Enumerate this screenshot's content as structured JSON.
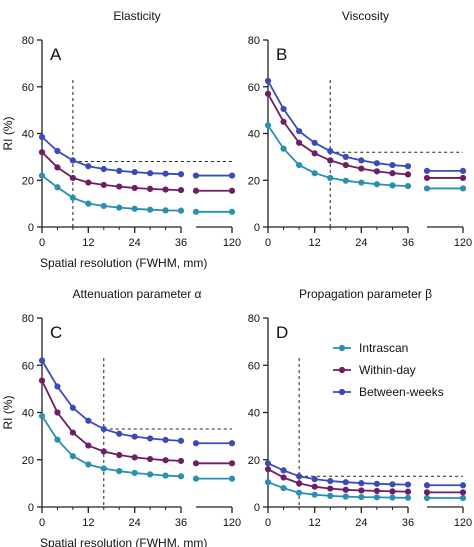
{
  "colors": {
    "Intrascan": "#2a8fb0",
    "Within-day": "#6e1f63",
    "Between-weeks": "#3a4bb8",
    "axis": "#222222",
    "threshold": "#222222"
  },
  "legend_labels": [
    "Intrascan",
    "Within-day",
    "Between-weeks"
  ],
  "chart_data": [
    {
      "type": "line",
      "panel_letter": "A",
      "title": "Elasticity",
      "xlabel": "Spatial resolution (FWHM, mm)",
      "ylabel": "RI (%)",
      "ylim": [
        0,
        80
      ],
      "yticks": [
        0,
        20,
        40,
        60,
        80
      ],
      "xticks_main": [
        0,
        12,
        24,
        36
      ],
      "xticks_break": [
        120
      ],
      "x": [
        0,
        4,
        8,
        12,
        16,
        20,
        24,
        28,
        32,
        36
      ],
      "x_break": [
        120
      ],
      "threshold_y": 28,
      "threshold_x": 8,
      "series": [
        {
          "name": "Intrascan",
          "values": [
            22,
            17,
            12.5,
            10,
            9,
            8.3,
            7.8,
            7.4,
            7.1,
            7
          ],
          "break_values": [
            6.5
          ]
        },
        {
          "name": "Within-day",
          "values": [
            32,
            25.5,
            21,
            19,
            18,
            17.3,
            16.7,
            16.3,
            16,
            15.8
          ],
          "break_values": [
            15.5
          ]
        },
        {
          "name": "Between-weeks",
          "values": [
            38.5,
            32.5,
            28.5,
            26,
            24.8,
            24,
            23.5,
            23,
            22.8,
            22.6
          ],
          "break_values": [
            22
          ]
        }
      ],
      "legend": false
    },
    {
      "type": "line",
      "panel_letter": "B",
      "title": "Viscosity",
      "xlabel": "",
      "ylabel": "",
      "ylim": [
        0,
        80
      ],
      "yticks": [
        0,
        20,
        40,
        60,
        80
      ],
      "xticks_main": [
        0,
        12,
        24,
        36
      ],
      "xticks_break": [
        120
      ],
      "x": [
        0,
        4,
        8,
        12,
        16,
        20,
        24,
        28,
        32,
        36
      ],
      "x_break": [
        120
      ],
      "threshold_y": 32,
      "threshold_x": 16,
      "series": [
        {
          "name": "Intrascan",
          "values": [
            43.5,
            33.5,
            26.5,
            23,
            21,
            19.8,
            19,
            18.3,
            17.8,
            17.5
          ],
          "break_values": [
            16.5
          ]
        },
        {
          "name": "Within-day",
          "values": [
            57,
            45,
            36,
            31.5,
            28.5,
            26.5,
            25,
            23.8,
            23,
            22.5
          ],
          "break_values": [
            21
          ]
        },
        {
          "name": "Between-weeks",
          "values": [
            62.5,
            50.5,
            41,
            36,
            32.5,
            30,
            28.5,
            27.3,
            26.5,
            26
          ],
          "break_values": [
            24
          ]
        }
      ],
      "legend": false
    },
    {
      "type": "line",
      "panel_letter": "C",
      "title": "Attenuation parameter α",
      "xlabel": "Spatial resolution (FWHM, mm)",
      "ylabel": "RI (%)",
      "ylim": [
        0,
        80
      ],
      "yticks": [
        0,
        20,
        40,
        60,
        80
      ],
      "xticks_main": [
        0,
        12,
        24,
        36
      ],
      "xticks_break": [
        120
      ],
      "x": [
        0,
        4,
        8,
        12,
        16,
        20,
        24,
        28,
        32,
        36
      ],
      "x_break": [
        120
      ],
      "threshold_y": 33,
      "threshold_x": 16,
      "series": [
        {
          "name": "Intrascan",
          "values": [
            38.5,
            28.5,
            21.5,
            18,
            16.3,
            15.2,
            14.4,
            13.8,
            13.3,
            13
          ],
          "break_values": [
            12
          ]
        },
        {
          "name": "Within-day",
          "values": [
            53.5,
            40,
            31.5,
            26,
            23.5,
            22,
            21,
            20.3,
            19.8,
            19.5
          ],
          "break_values": [
            18.5
          ]
        },
        {
          "name": "Between-weeks",
          "values": [
            62,
            51,
            42,
            36.5,
            33,
            31,
            29.8,
            29,
            28.4,
            28
          ],
          "break_values": [
            27
          ]
        }
      ],
      "legend": false
    },
    {
      "type": "line",
      "panel_letter": "D",
      "title": "Propagation parameter β",
      "xlabel": "",
      "ylabel": "",
      "ylim": [
        0,
        80
      ],
      "yticks": [
        0,
        20,
        40,
        60,
        80
      ],
      "xticks_main": [
        0,
        12,
        24,
        36
      ],
      "xticks_break": [
        120
      ],
      "x": [
        0,
        4,
        8,
        12,
        16,
        20,
        24,
        28,
        32,
        36
      ],
      "x_break": [
        120
      ],
      "threshold_y": 13,
      "threshold_x": 8,
      "series": [
        {
          "name": "Intrascan",
          "values": [
            10.5,
            8,
            6,
            5.2,
            4.7,
            4.4,
            4.2,
            4.1,
            4,
            3.9
          ],
          "break_values": [
            3.8
          ]
        },
        {
          "name": "Within-day",
          "values": [
            16,
            12.5,
            10,
            8.6,
            7.8,
            7.3,
            7,
            6.8,
            6.6,
            6.5
          ],
          "break_values": [
            6.2
          ]
        },
        {
          "name": "Between-weeks",
          "values": [
            18.5,
            15.5,
            13,
            11.8,
            11,
            10.5,
            10.1,
            9.8,
            9.6,
            9.5
          ],
          "break_values": [
            9.2
          ]
        }
      ],
      "legend": true
    }
  ]
}
